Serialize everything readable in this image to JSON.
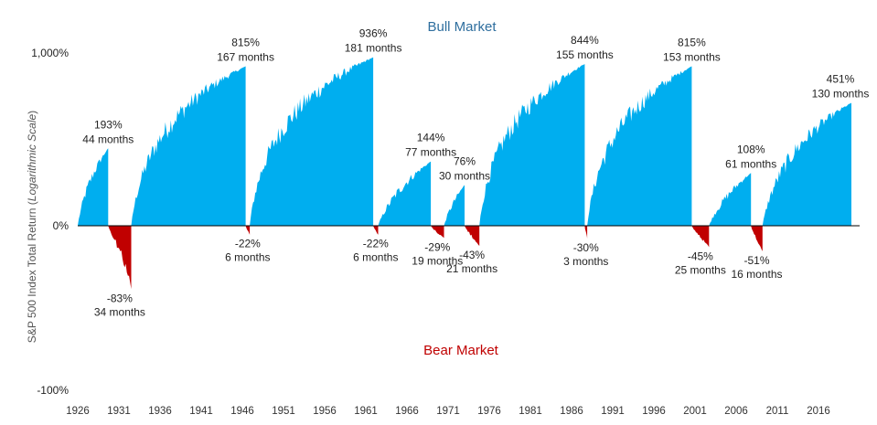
{
  "chart_data": {
    "type": "area",
    "annotations_top": "Bull Market",
    "annotations_bottom": "Bear Market",
    "ylabel_main": "S&P 500 Index Total Return (",
    "ylabel_italic": "Logarithmic Scale",
    "ylabel_close": ")",
    "yscale": "log",
    "y_ticks": [
      {
        "value": 1000,
        "label": "1,000%"
      },
      {
        "value": 0,
        "label": "0%"
      },
      {
        "value": -100,
        "label": "-100%"
      }
    ],
    "x_ticks": [
      "1926",
      "1931",
      "1936",
      "1941",
      "1946",
      "1951",
      "1956",
      "1961",
      "1966",
      "1971",
      "1976",
      "1981",
      "1986",
      "1991",
      "1996",
      "2001",
      "2006",
      "2011",
      "2016"
    ],
    "x_range": [
      1926,
      2021
    ],
    "colors": {
      "bull": "#00aeef",
      "bear": "#c00000",
      "zero_line": "#000000",
      "text": "#222222",
      "bull_title": "#2e6e9e",
      "bear_title": "#c00000"
    },
    "bull_markets": [
      {
        "start": 1926.0,
        "end": 1929.7,
        "return_pct": 193,
        "return_label": "193%",
        "duration_label": "44 months"
      },
      {
        "start": 1932.5,
        "end": 1946.4,
        "return_pct": 815,
        "return_label": "815%",
        "duration_label": "167 months"
      },
      {
        "start": 1946.9,
        "end": 1961.9,
        "return_pct": 936,
        "return_label": "936%",
        "duration_label": "181 months"
      },
      {
        "start": 1962.5,
        "end": 1968.9,
        "return_pct": 144,
        "return_label": "144%",
        "duration_label": "77 months"
      },
      {
        "start": 1970.5,
        "end": 1973.0,
        "return_pct": 76,
        "return_label": "76%",
        "duration_label": "30 months"
      },
      {
        "start": 1974.8,
        "end": 1987.6,
        "return_pct": 844,
        "return_label": "844%",
        "duration_label": "155 months"
      },
      {
        "start": 1987.9,
        "end": 2000.6,
        "return_pct": 815,
        "return_label": "815%",
        "duration_label": "153 months"
      },
      {
        "start": 2002.7,
        "end": 2007.8,
        "return_pct": 108,
        "return_label": "108%",
        "duration_label": "61 months"
      },
      {
        "start": 2009.2,
        "end": 2020.0,
        "return_pct": 451,
        "return_label": "451%",
        "duration_label": "130 months"
      }
    ],
    "bear_markets": [
      {
        "start": 1929.7,
        "end": 1932.5,
        "return_pct": -83,
        "return_label": "-83%",
        "duration_label": "34 months"
      },
      {
        "start": 1946.4,
        "end": 1946.9,
        "return_pct": -22,
        "return_label": "-22%",
        "duration_label": "6 months"
      },
      {
        "start": 1961.9,
        "end": 1962.5,
        "return_pct": -22,
        "return_label": "-22%",
        "duration_label": "6 months"
      },
      {
        "start": 1968.9,
        "end": 1970.5,
        "return_pct": -29,
        "return_label": "-29%",
        "duration_label": "19 months"
      },
      {
        "start": 1973.0,
        "end": 1974.8,
        "return_pct": -43,
        "return_label": "-43%",
        "duration_label": "21 months"
      },
      {
        "start": 1987.6,
        "end": 1987.9,
        "return_pct": -30,
        "return_label": "-30%",
        "duration_label": "3 months"
      },
      {
        "start": 2000.6,
        "end": 2002.7,
        "return_pct": -45,
        "return_label": "-45%",
        "duration_label": "25 months"
      },
      {
        "start": 2007.8,
        "end": 2009.2,
        "return_pct": -51,
        "return_label": "-51%",
        "duration_label": "16 months"
      }
    ]
  }
}
